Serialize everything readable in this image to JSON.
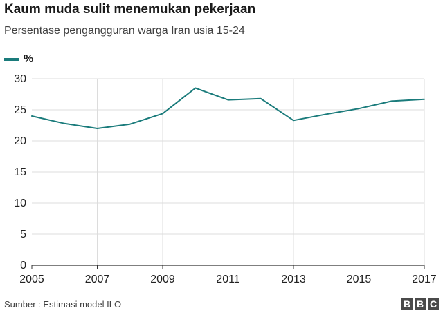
{
  "title": "Kaum muda sulit menemukan pekerjaan",
  "subtitle": "Persentase pengangguran warga Iran usia 15-24",
  "legend_label": "%",
  "source": "Sumber : Estimasi model ILO",
  "logo_letters": [
    "B",
    "B",
    "C"
  ],
  "colors": {
    "line": "#1a7b7b",
    "grid": "#dcdcdc",
    "axis": "#333333"
  },
  "chart_data": {
    "type": "line",
    "title": "Kaum muda sulit menemukan pekerjaan",
    "subtitle": "Persentase pengangguran warga Iran usia 15-24",
    "xlabel": "",
    "ylabel": "",
    "x": [
      2005,
      2006,
      2007,
      2008,
      2009,
      2010,
      2011,
      2012,
      2013,
      2014,
      2015,
      2016,
      2017
    ],
    "series": [
      {
        "name": "%",
        "values": [
          24.0,
          22.8,
          22.0,
          22.7,
          24.4,
          28.5,
          26.6,
          26.8,
          23.3,
          24.3,
          25.2,
          26.4,
          26.7
        ]
      }
    ],
    "xticks": [
      2005,
      2007,
      2009,
      2011,
      2013,
      2015,
      2017
    ],
    "yticks": [
      0,
      5,
      10,
      15,
      20,
      25,
      30
    ],
    "xlim": [
      2005,
      2017
    ],
    "ylim": [
      0,
      30
    ],
    "grid": true,
    "legend_position": "top-left"
  }
}
